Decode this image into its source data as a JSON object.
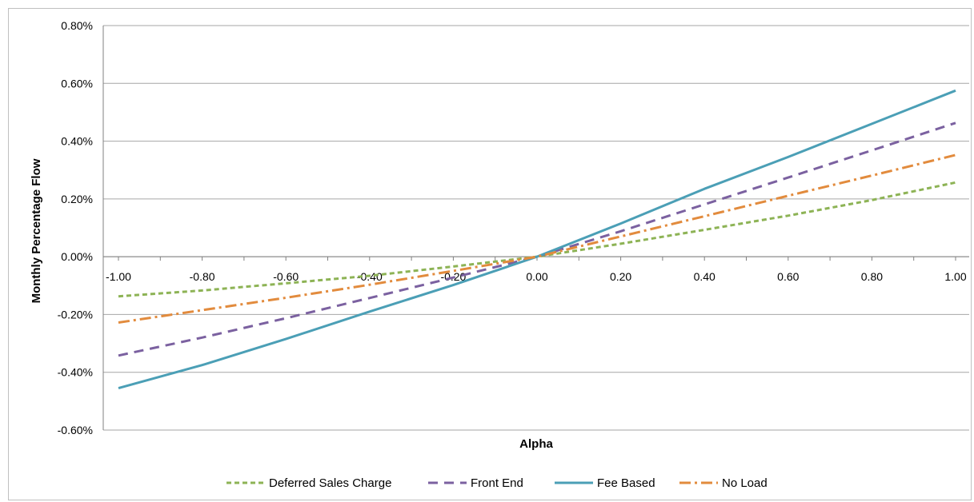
{
  "chart_data": {
    "type": "line",
    "title": "",
    "xlabel": "Alpha",
    "ylabel": "Monthly Percentage Flow",
    "x": [
      -1.0,
      -0.8,
      -0.6,
      -0.4,
      -0.2,
      0.0,
      0.2,
      0.4,
      0.6,
      0.8,
      1.0
    ],
    "x_ticks": [
      "-1.00",
      "-0.80",
      "-0.60",
      "-0.40",
      "-0.20",
      "0.00",
      "0.20",
      "0.40",
      "0.60",
      "0.80",
      "1.00"
    ],
    "y_ticks": [
      "0.80%",
      "0.60%",
      "0.40%",
      "0.20%",
      "0.00%",
      "-0.20%",
      "-0.40%",
      "-0.60%"
    ],
    "ylim": [
      -0.6,
      0.8
    ],
    "xlim": [
      -1.0,
      1.0
    ],
    "grid": "horizontal",
    "legend_position": "bottom",
    "series": [
      {
        "name": "Deferred Sales Charge",
        "color": "#8db355",
        "dash": "dashed",
        "values": [
          -0.137,
          -0.117,
          -0.092,
          -0.066,
          -0.034,
          0.0,
          0.045,
          0.093,
          0.142,
          0.196,
          0.257
        ]
      },
      {
        "name": "Front End",
        "color": "#7b61a0",
        "dash": "long-dash",
        "values": [
          -0.342,
          -0.28,
          -0.213,
          -0.143,
          -0.072,
          0.0,
          0.088,
          0.181,
          0.274,
          0.368,
          0.463
        ]
      },
      {
        "name": "Fee Based",
        "color": "#4b9fb6",
        "dash": "solid",
        "values": [
          -0.455,
          -0.375,
          -0.285,
          -0.19,
          -0.098,
          0.0,
          0.115,
          0.235,
          0.345,
          0.46,
          0.575
        ]
      },
      {
        "name": "No Load",
        "color": "#e28b3d",
        "dash": "dash-dot",
        "values": [
          -0.228,
          -0.185,
          -0.142,
          -0.097,
          -0.049,
          0.0,
          0.07,
          0.14,
          0.211,
          0.281,
          0.352
        ]
      }
    ]
  }
}
